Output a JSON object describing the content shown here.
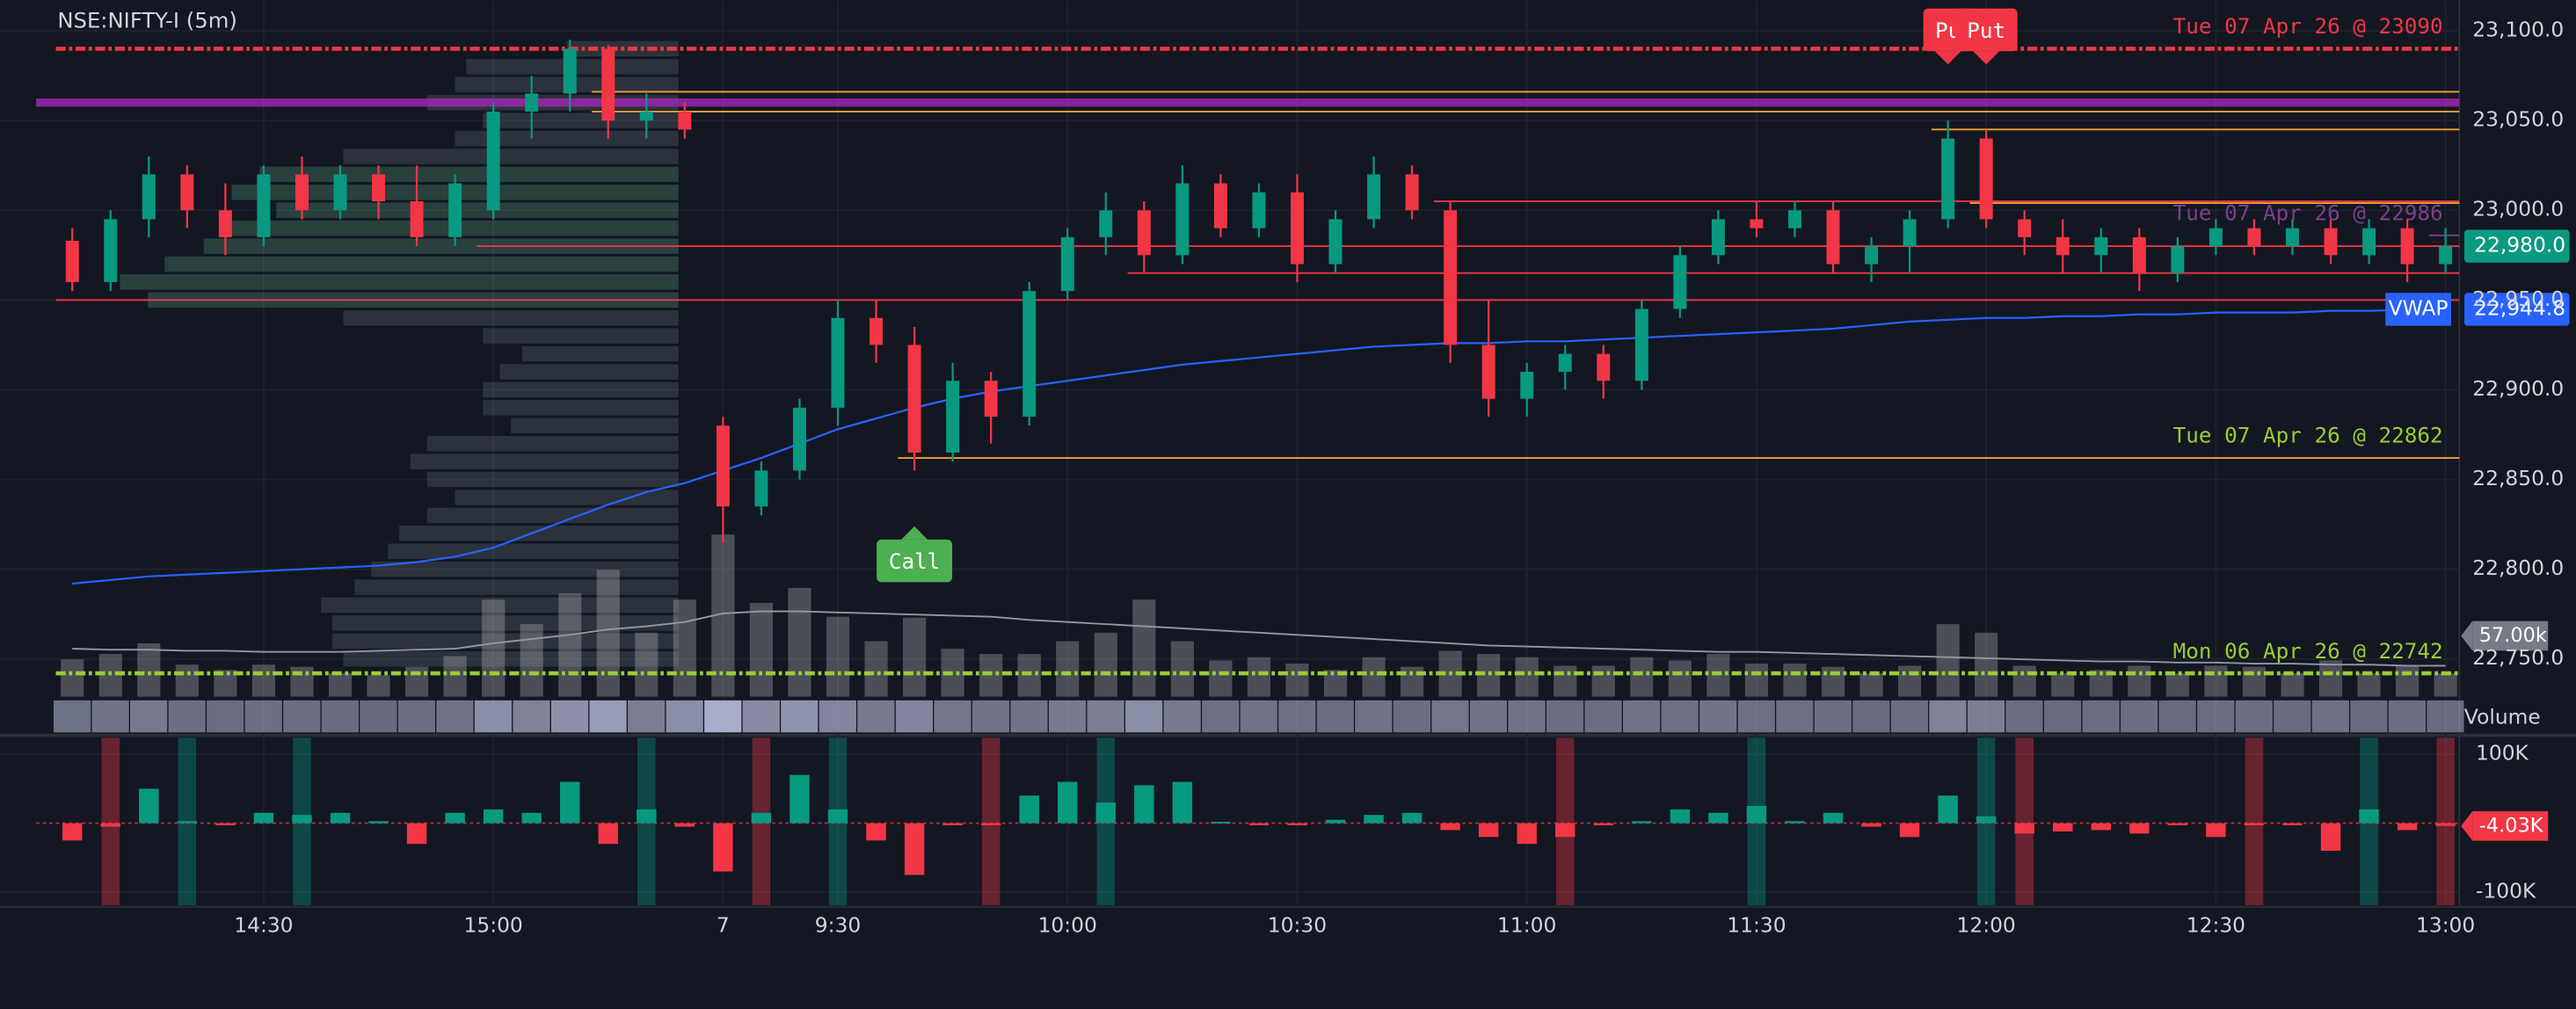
{
  "chart_data": {
    "type": "candlestick",
    "title": "NSE:NIFTY-I (5m)",
    "categories": [
      null,
      null,
      null,
      null,
      null,
      "14:30",
      null,
      null,
      null,
      null,
      null,
      "15:00",
      null,
      null,
      null,
      null,
      null,
      "7",
      null,
      null,
      "9:30",
      null,
      null,
      null,
      null,
      null,
      "10:00",
      null,
      null,
      null,
      null,
      null,
      "10:30",
      null,
      null,
      null,
      null,
      null,
      "11:00",
      null,
      null,
      null,
      null,
      null,
      "11:30",
      null,
      null,
      null,
      null,
      null,
      "12:00",
      null,
      null,
      null,
      null,
      null,
      "12:30",
      null,
      null,
      null,
      null,
      null,
      "13:00"
    ],
    "open": [
      22983,
      22960,
      22995,
      23020,
      23000,
      22985,
      23020,
      23000,
      23020,
      23005,
      22985,
      23000,
      23055,
      23065,
      23090,
      23050,
      23055,
      22880,
      22835,
      22855,
      22890,
      22940,
      22925,
      22865,
      22905,
      22885,
      22955,
      22985,
      23000,
      22975,
      23015,
      22990,
      23010,
      22970,
      22995,
      23020,
      23000,
      22925,
      22895,
      22910,
      22920,
      22905,
      22945,
      22975,
      22995,
      22990,
      23000,
      22970,
      22980,
      22995,
      23040,
      22995,
      22985,
      22975,
      22985,
      22965,
      22980,
      22990,
      22980,
      22990,
      22975,
      22990,
      22970
    ],
    "high": [
      22990,
      23000,
      23030,
      23025,
      23015,
      23025,
      23030,
      23025,
      23025,
      23025,
      23020,
      23060,
      23075,
      23095,
      23092,
      23065,
      23060,
      22885,
      22860,
      22895,
      22950,
      22950,
      22935,
      22915,
      22910,
      22960,
      22990,
      23010,
      23005,
      23025,
      23020,
      23015,
      23020,
      23000,
      23030,
      23025,
      23005,
      22950,
      22915,
      22925,
      22925,
      22950,
      22980,
      23000,
      23005,
      23005,
      23005,
      22985,
      23000,
      23050,
      23045,
      23000,
      22995,
      22990,
      22990,
      22985,
      22995,
      22995,
      22995,
      22995,
      22995,
      22995,
      22990
    ],
    "low": [
      22955,
      22955,
      22985,
      22990,
      22975,
      22980,
      22995,
      22995,
      22995,
      22980,
      22980,
      22995,
      23040,
      23055,
      23040,
      23040,
      23040,
      22815,
      22830,
      22850,
      22880,
      22915,
      22855,
      22860,
      22870,
      22880,
      22950,
      22975,
      22965,
      22970,
      22985,
      22985,
      22960,
      22965,
      22990,
      22995,
      22915,
      22885,
      22885,
      22900,
      22895,
      22900,
      22940,
      22970,
      22985,
      22985,
      22965,
      22960,
      22965,
      22990,
      22990,
      22975,
      22965,
      22965,
      22955,
      22960,
      22975,
      22975,
      22975,
      22970,
      22970,
      22960,
      22965
    ],
    "close": [
      22960,
      22995,
      23020,
      23000,
      22985,
      23020,
      23000,
      23020,
      23005,
      22985,
      23015,
      23055,
      23065,
      23090,
      23050,
      23055,
      23045,
      22835,
      22855,
      22890,
      22940,
      22925,
      22865,
      22905,
      22885,
      22955,
      22985,
      23000,
      22975,
      23015,
      22990,
      23010,
      22970,
      22995,
      23020,
      23000,
      22925,
      22895,
      22910,
      22920,
      22905,
      22945,
      22975,
      22995,
      22990,
      23000,
      22970,
      22980,
      22995,
      23040,
      22995,
      22985,
      22975,
      22985,
      22965,
      22980,
      22990,
      22980,
      22990,
      22975,
      22990,
      22970,
      22980
    ],
    "up_color": "#089981",
    "down_color": "#f23645",
    "vwap": {
      "name": "VWAP",
      "color": "#2962ff",
      "values": [
        22792,
        22794,
        22796,
        22797,
        22798,
        22799,
        22800,
        22801,
        22802,
        22804,
        22807,
        22812,
        22820,
        22828,
        22836,
        22843,
        22848,
        22855,
        22862,
        22870,
        22878,
        22884,
        22890,
        22895,
        22899,
        22902,
        22905,
        22908,
        22911,
        22914,
        22916,
        22918,
        22920,
        22922,
        22924,
        22925,
        22926,
        22926,
        22927,
        22927,
        22928,
        22929,
        22930,
        22931,
        22932,
        22933,
        22934,
        22936,
        22938,
        22939,
        22940,
        22940,
        22941,
        22941,
        22942,
        22942,
        22943,
        22943,
        22943,
        22944,
        22944,
        22944.5,
        22944.8
      ]
    },
    "ylim": [
      22729,
      23117
    ],
    "yticks": [
      {
        "value": 22750,
        "label": "22,750.0"
      },
      {
        "value": 22800,
        "label": "22,800.0"
      },
      {
        "value": 22850,
        "label": "22,850.0"
      },
      {
        "value": 22900,
        "label": "22,900.0"
      },
      {
        "value": 22950,
        "label": "22,950.0"
      },
      {
        "value": 23000,
        "label": "23,000.0"
      },
      {
        "value": 23050,
        "label": "23,050.0"
      },
      {
        "value": 23100,
        "label": "23,100.0"
      }
    ],
    "price_tag": {
      "value": 22980,
      "label": "22,980.0"
    },
    "vwap_tag": {
      "value": 22944.8,
      "label": "22,944.8"
    },
    "levels": [
      {
        "value": 23090,
        "color": "#f23645",
        "dashed": true,
        "from": 0,
        "label": "Tue 07 Apr 26 @ 23090"
      },
      {
        "value": 22742,
        "color": "#9acd32",
        "dashed": true,
        "from": 0,
        "label": "Mon 06 Apr 26 @ 22742"
      },
      {
        "value": 22862,
        "color": "#f0a030",
        "dashed": false,
        "from": 22,
        "label": "Tue 07 Apr 26 @ 22862",
        "label_color": "#9acd32"
      },
      {
        "value": 22986,
        "color": "#7b3f8c",
        "dashed": false,
        "from": 62,
        "label": "Tue 07 Apr 26 @ 22986"
      },
      {
        "value": 23060,
        "color": "#9c27b0",
        "dashed": false,
        "from": -1,
        "width": 5
      },
      {
        "value": 23066,
        "color": "#f0a030",
        "dashed": false,
        "from": 14
      },
      {
        "value": 23055,
        "color": "#f0a030",
        "dashed": false,
        "from": 14
      },
      {
        "value": 23045,
        "color": "#f0a030",
        "dashed": false,
        "from": 49
      },
      {
        "value": 23004,
        "color": "#f0a030",
        "dashed": false,
        "from": 50
      },
      {
        "value": 23005,
        "color": "#f23645",
        "dashed": false,
        "from": 36
      },
      {
        "value": 22980,
        "color": "#f23645",
        "dashed": false,
        "from": 11
      },
      {
        "value": 22965,
        "color": "#f23645",
        "dashed": false,
        "from": 28
      },
      {
        "value": 22950,
        "color": "#f23645",
        "dashed": false,
        "from": 0
      }
    ],
    "signals": [
      {
        "index": 22,
        "label": "Call",
        "color": "#4caf50"
      },
      {
        "index": 49,
        "label": "Pu",
        "color": "#f23645"
      },
      {
        "index": 50,
        "label": "Put",
        "color": "#f23645"
      }
    ],
    "volume": {
      "name": "Volume",
      "values": [
        35,
        40,
        50,
        30,
        25,
        30,
        28,
        22,
        20,
        28,
        38,
        91,
        68,
        97,
        119,
        60,
        91,
        152,
        88,
        102,
        75,
        52,
        74,
        45,
        40,
        40,
        52,
        60,
        91,
        52,
        34,
        37,
        31,
        25,
        37,
        28,
        43,
        40,
        37,
        29,
        29,
        37,
        34,
        40,
        31,
        31,
        28,
        22,
        29,
        68,
        60,
        29,
        22,
        25,
        29,
        22,
        29,
        28,
        22,
        34,
        22,
        29,
        22
      ],
      "ma": [
        45,
        44,
        44,
        43,
        43,
        42,
        42,
        42,
        43,
        44,
        45,
        50,
        54,
        58,
        63,
        66,
        70,
        78,
        80,
        80,
        79,
        78,
        77,
        76,
        75,
        72,
        70,
        68,
        66,
        64,
        62,
        60,
        58,
        56,
        54,
        52,
        50,
        48,
        47,
        46,
        45,
        44,
        43,
        42,
        42,
        41,
        40,
        39,
        38,
        37,
        36,
        35,
        34,
        33,
        33,
        32,
        32,
        31,
        31,
        30,
        30,
        29,
        29
      ],
      "vlim": [
        0,
        653
      ],
      "tag": {
        "value": 57,
        "label": "57.00k"
      }
    },
    "volume_profile": {
      "prices": [
        22750,
        22760,
        22770,
        22780,
        22790,
        22800,
        22810,
        22820,
        22830,
        22840,
        22850,
        22860,
        22870,
        22880,
        22890,
        22900,
        22910,
        22920,
        22930,
        22940,
        22950,
        22960,
        22970,
        22980,
        22990,
        23000,
        23010,
        23020,
        23030,
        23040,
        23050,
        23060,
        23070,
        23080,
        23090
      ],
      "values": [
        60,
        62,
        62,
        64,
        58,
        55,
        52,
        50,
        45,
        40,
        45,
        48,
        45,
        30,
        35,
        35,
        32,
        28,
        35,
        60,
        95,
        100,
        92,
        85,
        80,
        72,
        80,
        75,
        60,
        40,
        35,
        45,
        40,
        38,
        20
      ]
    },
    "delta": {
      "values": [
        -25,
        -5,
        50,
        3,
        -3,
        15,
        12,
        15,
        3,
        -30,
        15,
        20,
        15,
        60,
        -30,
        20,
        -5,
        -70,
        15,
        70,
        20,
        -25,
        -75,
        -3,
        -3,
        40,
        60,
        30,
        55,
        60,
        2,
        -3,
        -3,
        5,
        12,
        15,
        -10,
        -20,
        -30,
        -20,
        -3,
        3,
        20,
        15,
        25,
        3,
        15,
        -5,
        -20,
        40,
        10,
        -15,
        -12,
        -10,
        -15,
        -3,
        -20,
        -3,
        -3,
        -40,
        20,
        -10,
        -4.03
      ],
      "lim": [
        -119,
        124
      ],
      "ticks": [
        {
          "value": 100,
          "label": "100K"
        },
        {
          "value": -100,
          "label": "-100K"
        }
      ],
      "tag": {
        "value": -4.03,
        "label": "-4.03K"
      },
      "highlights": [
        null,
        "#f23645",
        null,
        "#089981",
        null,
        null,
        "#089981",
        null,
        null,
        null,
        null,
        null,
        null,
        null,
        null,
        "#089981",
        null,
        null,
        "#f23645",
        null,
        "#089981",
        null,
        null,
        null,
        "#f23645",
        null,
        null,
        "#089981",
        null,
        null,
        null,
        null,
        null,
        null,
        null,
        null,
        null,
        null,
        null,
        "#f23645",
        null,
        null,
        null,
        null,
        "#089981",
        null,
        null,
        null,
        null,
        null,
        "#089981",
        "#f23645",
        null,
        null,
        null,
        null,
        null,
        "#f23645",
        null,
        null,
        "#089981",
        null,
        "#f23645"
      ]
    }
  }
}
